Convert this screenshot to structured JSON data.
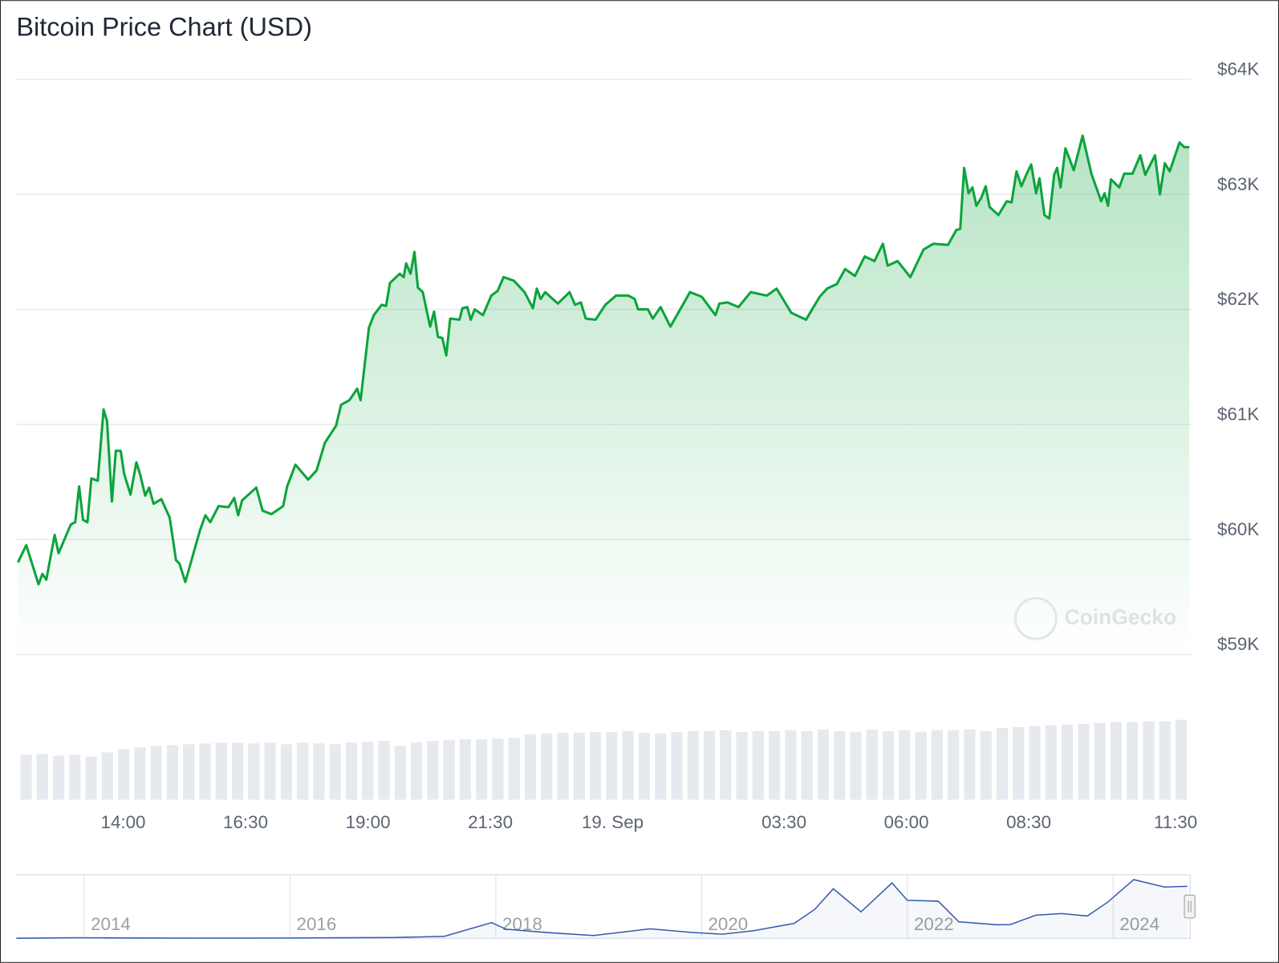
{
  "chart_data": {
    "type": "line",
    "title": "Bitcoin Price Chart (USD)",
    "watermark": "CoinGecko",
    "color": "#0ca43c",
    "grid": true,
    "xlim": [
      11.85,
      35.78
    ],
    "xticks": [
      {
        "value": 14,
        "label": "14:00"
      },
      {
        "value": 16.5,
        "label": "16:30"
      },
      {
        "value": 19,
        "label": "19:00"
      },
      {
        "value": 21.5,
        "label": "21:30"
      },
      {
        "value": 24,
        "label": "19. Sep"
      },
      {
        "value": 27.5,
        "label": "03:30"
      },
      {
        "value": 30,
        "label": "06:00"
      },
      {
        "value": 32.5,
        "label": "08:30"
      },
      {
        "value": 35.5,
        "label": "11:30"
      }
    ],
    "ylim": [
      59000,
      64000
    ],
    "yticks": [
      {
        "value": 59000,
        "label": "$59K"
      },
      {
        "value": 60000,
        "label": "$60K"
      },
      {
        "value": 61000,
        "label": "$61K"
      },
      {
        "value": 62000,
        "label": "$62K"
      },
      {
        "value": 63000,
        "label": "$63K"
      },
      {
        "value": 64000,
        "label": "$64K"
      }
    ],
    "x": [
      11.85,
      12.02,
      12.27,
      12.35,
      12.43,
      12.6,
      12.68,
      12.93,
      13.02,
      13.1,
      13.18,
      13.27,
      13.35,
      13.48,
      13.6,
      13.67,
      13.77,
      13.85,
      13.95,
      14.02,
      14.15,
      14.27,
      14.35,
      14.45,
      14.53,
      14.62,
      14.78,
      14.95,
      15.08,
      15.15,
      15.27,
      15.57,
      15.68,
      15.78,
      15.95,
      16.15,
      16.27,
      16.35,
      16.43,
      16.72,
      16.85,
      17.03,
      17.27,
      17.35,
      17.52,
      17.78,
      17.95,
      18.12,
      18.35,
      18.45,
      18.62,
      18.78,
      18.85,
      19.02,
      19.12,
      19.28,
      19.37,
      19.45,
      19.65,
      19.73,
      19.78,
      19.87,
      19.95,
      20.02,
      20.12,
      20.27,
      20.35,
      20.43,
      20.52,
      20.6,
      20.68,
      20.87,
      20.93,
      21.03,
      21.1,
      21.18,
      21.35,
      21.52,
      21.65,
      21.77,
      21.98,
      22.2,
      22.37,
      22.45,
      22.53,
      22.62,
      22.88,
      23.12,
      23.23,
      23.35,
      23.45,
      23.65,
      23.85,
      24.07,
      24.32,
      24.45,
      24.52,
      24.72,
      24.82,
      24.98,
      25.18,
      25.38,
      25.58,
      25.82,
      26.1,
      26.18,
      26.35,
      26.57,
      26.82,
      27.15,
      27.35,
      27.65,
      27.95,
      28.23,
      28.38,
      28.58,
      28.75,
      28.95,
      29.15,
      29.35,
      29.52,
      29.62,
      29.82,
      30.08,
      30.35,
      30.55,
      30.85,
      31.02,
      31.1,
      31.18,
      31.27,
      31.35,
      31.43,
      31.53,
      31.62,
      31.7,
      31.88,
      32.05,
      32.15,
      32.25,
      32.35,
      32.45,
      32.55,
      32.65,
      32.72,
      32.82,
      32.92,
      33.02,
      33.08,
      33.15,
      33.25,
      33.42,
      33.6,
      33.78,
      33.98,
      34.05,
      34.12,
      34.18,
      34.35,
      34.45,
      34.62,
      34.78,
      34.88,
      35.08,
      35.18,
      35.28,
      35.38,
      35.58,
      35.68,
      35.78
    ],
    "values": [
      59800,
      59950,
      59610,
      59700,
      59650,
      60040,
      59880,
      60130,
      60150,
      60460,
      60170,
      60150,
      60530,
      60510,
      61130,
      61030,
      60330,
      60770,
      60770,
      60570,
      60390,
      60670,
      60560,
      60380,
      60450,
      60310,
      60350,
      60190,
      59820,
      59790,
      59630,
      60080,
      60210,
      60150,
      60290,
      60280,
      60360,
      60210,
      60340,
      60450,
      60250,
      60220,
      60290,
      60460,
      60650,
      60520,
      60600,
      60840,
      60990,
      61170,
      61210,
      61310,
      61210,
      61840,
      61950,
      62040,
      62030,
      62230,
      62310,
      62280,
      62400,
      62310,
      62500,
      62190,
      62150,
      61850,
      61980,
      61760,
      61750,
      61600,
      61920,
      61910,
      62010,
      62020,
      61910,
      62000,
      61950,
      62120,
      62160,
      62280,
      62250,
      62150,
      62010,
      62180,
      62090,
      62150,
      62050,
      62150,
      62040,
      62060,
      61920,
      61910,
      62040,
      62120,
      62120,
      62090,
      62000,
      62000,
      61920,
      62020,
      61850,
      62000,
      62150,
      62110,
      61950,
      62050,
      62060,
      62020,
      62150,
      62120,
      62180,
      61970,
      61910,
      62110,
      62180,
      62220,
      62350,
      62290,
      62460,
      62420,
      62570,
      62380,
      62420,
      62280,
      62520,
      62570,
      62560,
      62690,
      62700,
      63230,
      63010,
      63060,
      62900,
      62970,
      63070,
      62890,
      62820,
      62940,
      62930,
      63200,
      63070,
      63170,
      63260,
      63010,
      63140,
      62820,
      62790,
      63170,
      63230,
      63060,
      63400,
      63210,
      63510,
      63180,
      62940,
      63010,
      62900,
      63130,
      63060,
      63180,
      63180,
      63340,
      63170,
      63340,
      63000,
      63270,
      63200,
      63450,
      63410,
      63410
    ],
    "volume": {
      "color": "#e6e9ee",
      "values": [
        55,
        56,
        54,
        55,
        53,
        58,
        62,
        64,
        66,
        67,
        68,
        69,
        70,
        70,
        69,
        70,
        68,
        70,
        69,
        68,
        70,
        71,
        72,
        66,
        70,
        72,
        73,
        74,
        74,
        75,
        76,
        80,
        81,
        82,
        82,
        83,
        83,
        84,
        82,
        81,
        83,
        84,
        84,
        85,
        83,
        84,
        84,
        85,
        84,
        86,
        84,
        83,
        86,
        84,
        85,
        83,
        85,
        85,
        86,
        84,
        88,
        89,
        90,
        91,
        92,
        93,
        94,
        95,
        95,
        96,
        96,
        98
      ]
    },
    "navigator": {
      "color": "#335cad",
      "xlim": [
        2013.34,
        2024.74
      ],
      "xticks": [
        2014,
        2016,
        2018,
        2020,
        2022,
        2024
      ],
      "x": [
        2013.34,
        2013.9,
        2014.2,
        2015,
        2016,
        2016.5,
        2017,
        2017.5,
        2017.96,
        2018.1,
        2018.5,
        2018.95,
        2019.5,
        2019.9,
        2020.2,
        2020.5,
        2020.9,
        2021.1,
        2021.28,
        2021.55,
        2021.85,
        2022.0,
        2022.3,
        2022.5,
        2022.87,
        2023.0,
        2023.25,
        2023.5,
        2023.75,
        2023.95,
        2024.2,
        2024.5,
        2024.72
      ],
      "values": [
        100,
        800,
        600,
        300,
        430,
        650,
        1000,
        2500,
        19000,
        11000,
        7000,
        3500,
        11500,
        7200,
        5000,
        9200,
        18000,
        35000,
        60000,
        32000,
        67000,
        46000,
        45000,
        20000,
        16500,
        16700,
        28000,
        30000,
        27000,
        44000,
        71000,
        62000,
        63000
      ]
    }
  }
}
